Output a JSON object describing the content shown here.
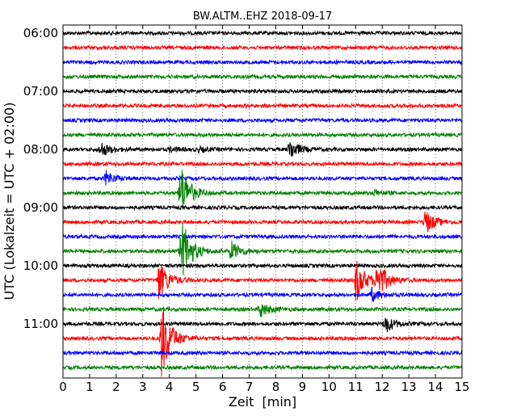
{
  "chart_data": {
    "type": "line",
    "title": "BW.ALTM..EHZ 2018-09-17",
    "xlabel": "Zeit  [min]",
    "ylabel": "UTC (Lokalzeit = UTC + 02:00)",
    "xlim": [
      0,
      15
    ],
    "x_ticks": [
      "0",
      "1",
      "2",
      "3",
      "4",
      "5",
      "6",
      "7",
      "8",
      "9",
      "10",
      "11",
      "12",
      "13",
      "14",
      "15"
    ],
    "y_ticks": [
      "06:00",
      "07:00",
      "08:00",
      "09:00",
      "10:00",
      "11:00"
    ],
    "grid": "vertical dotted lines at every minute",
    "trace_interval_minutes": 15,
    "color_cycle": [
      "#000000",
      "#ff0000",
      "#0000ff",
      "#008000"
    ],
    "traces": [
      {
        "start": "06:00",
        "color": "#000000"
      },
      {
        "start": "06:15",
        "color": "#ff0000"
      },
      {
        "start": "06:30",
        "color": "#0000ff"
      },
      {
        "start": "06:45",
        "color": "#008000"
      },
      {
        "start": "07:00",
        "color": "#000000"
      },
      {
        "start": "07:15",
        "color": "#ff0000"
      },
      {
        "start": "07:30",
        "color": "#0000ff"
      },
      {
        "start": "07:45",
        "color": "#008000"
      },
      {
        "start": "08:00",
        "color": "#000000"
      },
      {
        "start": "08:15",
        "color": "#ff0000"
      },
      {
        "start": "08:30",
        "color": "#0000ff"
      },
      {
        "start": "08:45",
        "color": "#008000"
      },
      {
        "start": "09:00",
        "color": "#000000"
      },
      {
        "start": "09:15",
        "color": "#ff0000"
      },
      {
        "start": "09:30",
        "color": "#0000ff"
      },
      {
        "start": "09:45",
        "color": "#008000"
      },
      {
        "start": "10:00",
        "color": "#000000"
      },
      {
        "start": "10:15",
        "color": "#ff0000"
      },
      {
        "start": "10:30",
        "color": "#0000ff"
      },
      {
        "start": "10:45",
        "color": "#008000"
      },
      {
        "start": "11:00",
        "color": "#000000"
      },
      {
        "start": "11:15",
        "color": "#ff0000"
      },
      {
        "start": "11:30",
        "color": "#0000ff"
      },
      {
        "start": "11:45",
        "color": "#008000"
      }
    ],
    "events": [
      {
        "trace": 8,
        "minute": 1.4,
        "amplitude": 0.55
      },
      {
        "trace": 8,
        "minute": 8.5,
        "amplitude": 0.75
      },
      {
        "trace": 8,
        "minute": 5.1,
        "amplitude": 0.15
      },
      {
        "trace": 8,
        "minute": 4.0,
        "amplitude": 0.15
      },
      {
        "trace": 10,
        "minute": 1.6,
        "amplitude": 0.5
      },
      {
        "trace": 11,
        "minute": 4.4,
        "amplitude": 2.1
      },
      {
        "trace": 11,
        "minute": 11.7,
        "amplitude": 0.2
      },
      {
        "trace": 13,
        "minute": 13.6,
        "amplitude": 0.9
      },
      {
        "trace": 15,
        "minute": 4.5,
        "amplitude": 1.5
      },
      {
        "trace": 15,
        "minute": 6.3,
        "amplitude": 0.7
      },
      {
        "trace": 17,
        "minute": 11.0,
        "amplitude": 1.6
      },
      {
        "trace": 17,
        "minute": 11.8,
        "amplitude": 1.4
      },
      {
        "trace": 17,
        "minute": 3.6,
        "amplitude": 1.5
      },
      {
        "trace": 18,
        "minute": 11.6,
        "amplitude": 0.45
      },
      {
        "trace": 19,
        "minute": 7.4,
        "amplitude": 0.55
      },
      {
        "trace": 20,
        "minute": 12.1,
        "amplitude": 0.65
      },
      {
        "trace": 21,
        "minute": 3.7,
        "amplitude": 2.8
      },
      {
        "trace": 15,
        "minute": 4.4,
        "amplitude": 0.8
      }
    ]
  }
}
